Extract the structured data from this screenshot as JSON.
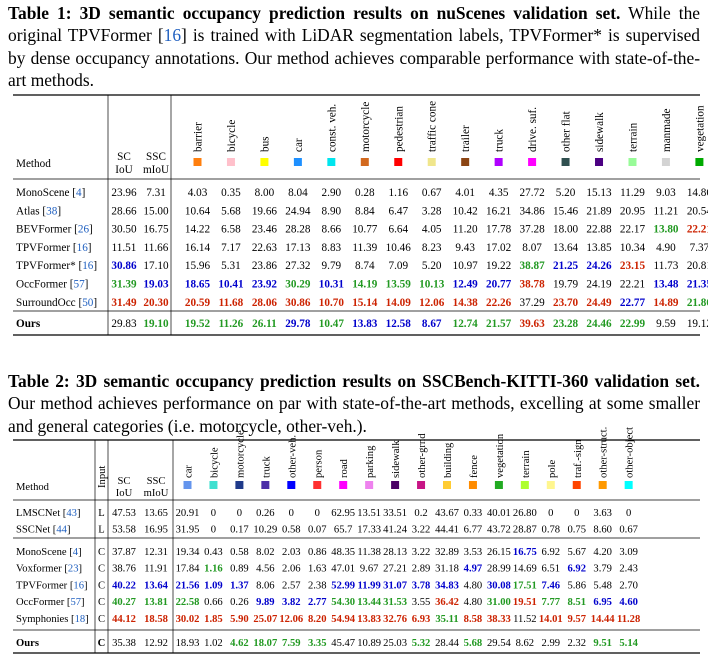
{
  "table1": {
    "label": "Table 1:",
    "title": "3D semantic occupancy prediction results on nuScenes validation set.",
    "text_pre": "While the original TPVFormer [",
    "ref": "16",
    "text_post": "] is trained with LiDAR segmentation labels, TPVFormer* is supervised by dense occupancy annotations. Our method achieves comparable performance with state-of-the-art methods.",
    "method_header": "Method",
    "metric_headers": [
      [
        "SC",
        "IoU"
      ],
      [
        "SSC",
        "mIoU"
      ]
    ],
    "classes": [
      {
        "name": "barrier",
        "color": "#ff7f0e"
      },
      {
        "name": "bicycle",
        "color": "#ffc0cb"
      },
      {
        "name": "bus",
        "color": "#ffff00"
      },
      {
        "name": "car",
        "color": "#1e90ff"
      },
      {
        "name": "const. veh.",
        "color": "#00e5ee"
      },
      {
        "name": "motorcycle",
        "color": "#d2691e"
      },
      {
        "name": "pedestrian",
        "color": "#ff0000"
      },
      {
        "name": "traffic cone",
        "color": "#f0e68c"
      },
      {
        "name": "trailer",
        "color": "#8b4513"
      },
      {
        "name": "truck",
        "color": "#b000ff"
      },
      {
        "name": "drive. suf.",
        "color": "#ff00ff"
      },
      {
        "name": "other flat",
        "color": "#2f4f4f"
      },
      {
        "name": "sidewalk",
        "color": "#4b0082"
      },
      {
        "name": "terrain",
        "color": "#98fb98"
      },
      {
        "name": "manmade",
        "color": "#d3d3d3"
      },
      {
        "name": "vegetation",
        "color": "#00aa00"
      }
    ],
    "rows": [
      {
        "method": "MonoScene",
        "ref": "4",
        "vals": [
          "23.96",
          "7.31",
          "4.03",
          "0.35",
          "8.00",
          "8.04",
          "2.90",
          "0.28",
          "1.16",
          "0.67",
          "4.01",
          "4.35",
          "27.72",
          "5.20",
          "15.13",
          "11.29",
          "9.03",
          "14.86"
        ],
        "styles": [
          0,
          0,
          0,
          0,
          0,
          0,
          0,
          0,
          0,
          0,
          0,
          0,
          0,
          0,
          0,
          0,
          0,
          0
        ]
      },
      {
        "method": "Atlas",
        "ref": "38",
        "vals": [
          "28.66",
          "15.00",
          "10.64",
          "5.68",
          "19.66",
          "24.94",
          "8.90",
          "8.84",
          "6.47",
          "3.28",
          "10.42",
          "16.21",
          "34.86",
          "15.46",
          "21.89",
          "20.95",
          "11.21",
          "20.54"
        ],
        "styles": [
          0,
          0,
          0,
          0,
          0,
          0,
          0,
          0,
          0,
          0,
          0,
          0,
          0,
          0,
          0,
          0,
          0,
          0
        ]
      },
      {
        "method": "BEVFormer",
        "ref": "26",
        "vals": [
          "30.50",
          "16.75",
          "14.22",
          "6.58",
          "23.46",
          "28.28",
          "8.66",
          "10.77",
          "6.64",
          "4.05",
          "11.20",
          "17.78",
          "37.28",
          "18.00",
          "22.88",
          "22.17",
          "13.80",
          "22.21"
        ],
        "styles": [
          0,
          0,
          0,
          0,
          0,
          0,
          0,
          0,
          0,
          0,
          0,
          0,
          0,
          0,
          0,
          0,
          2,
          3
        ]
      },
      {
        "method": "TPVFormer",
        "ref": "16",
        "vals": [
          "11.51",
          "11.66",
          "16.14",
          "7.17",
          "22.63",
          "17.13",
          "8.83",
          "11.39",
          "10.46",
          "8.23",
          "9.43",
          "17.02",
          "8.07",
          "13.64",
          "13.85",
          "10.34",
          "4.90",
          "7.37"
        ],
        "styles": [
          0,
          0,
          0,
          0,
          0,
          0,
          0,
          0,
          0,
          0,
          0,
          0,
          0,
          0,
          0,
          0,
          0,
          0
        ]
      },
      {
        "method": "TPVFormer*",
        "ref": "16",
        "vals": [
          "30.86",
          "17.10",
          "15.96",
          "5.31",
          "23.86",
          "27.32",
          "9.79",
          "8.74",
          "7.09",
          "5.20",
          "10.97",
          "19.22",
          "38.87",
          "21.25",
          "24.26",
          "23.15",
          "11.73",
          "20.81"
        ],
        "styles": [
          1,
          0,
          0,
          0,
          0,
          0,
          0,
          0,
          0,
          0,
          0,
          0,
          2,
          1,
          1,
          3,
          0,
          0
        ]
      },
      {
        "method": "OccFormer",
        "ref": "57",
        "vals": [
          "31.39",
          "19.03",
          "18.65",
          "10.41",
          "23.92",
          "30.29",
          "10.31",
          "14.19",
          "13.59",
          "10.13",
          "12.49",
          "20.77",
          "38.78",
          "19.79",
          "24.19",
          "22.21",
          "13.48",
          "21.35"
        ],
        "styles": [
          2,
          1,
          1,
          1,
          1,
          2,
          1,
          2,
          2,
          2,
          1,
          1,
          3,
          0,
          0,
          0,
          1,
          1
        ]
      },
      {
        "method": "SurroundOcc",
        "ref": "50",
        "vals": [
          "31.49",
          "20.30",
          "20.59",
          "11.68",
          "28.06",
          "30.86",
          "10.70",
          "15.14",
          "14.09",
          "12.06",
          "14.38",
          "22.26",
          "37.29",
          "23.70",
          "24.49",
          "22.77",
          "14.89",
          "21.86"
        ],
        "styles": [
          3,
          3,
          3,
          3,
          3,
          3,
          3,
          3,
          3,
          3,
          3,
          3,
          0,
          3,
          3,
          1,
          3,
          2
        ]
      }
    ],
    "ours": {
      "method": "Ours",
      "vals": [
        "29.83",
        "19.10",
        "19.52",
        "11.26",
        "26.11",
        "29.78",
        "10.47",
        "13.83",
        "12.58",
        "8.67",
        "12.74",
        "21.57",
        "39.63",
        "23.28",
        "24.46",
        "22.99",
        "9.59",
        "19.12"
      ],
      "styles": [
        0,
        2,
        2,
        2,
        2,
        1,
        2,
        1,
        1,
        1,
        2,
        2,
        3,
        2,
        2,
        2,
        0,
        0
      ]
    }
  },
  "table2": {
    "label": "Table 2:",
    "title": "3D semantic occupancy prediction results on SSCBench-KITTI-360 validation set.",
    "text": "Our method achieves performance on par with state-of-the-art methods, excelling at some smaller and general categories (i.e. motorcycle, other-veh.).",
    "method_header": "Method",
    "input_header": "Input",
    "metric_headers": [
      [
        "SC",
        "IoU"
      ],
      [
        "SSC",
        "mIoU"
      ]
    ],
    "classes": [
      {
        "name": "car",
        "color": "#6495ed"
      },
      {
        "name": "bicycle",
        "color": "#40e0d0"
      },
      {
        "name": "motorcycle",
        "color": "#1f3a8a"
      },
      {
        "name": "truck",
        "color": "#4b2ea8"
      },
      {
        "name": "other-veh.",
        "color": "#0000ff"
      },
      {
        "name": "person",
        "color": "#ff3030"
      },
      {
        "name": "road",
        "color": "#ff00ff"
      },
      {
        "name": "parking",
        "color": "#ee82ee"
      },
      {
        "name": "sidewalk",
        "color": "#4b0066"
      },
      {
        "name": "other-grnd",
        "color": "#c71585"
      },
      {
        "name": "building",
        "color": "#ffcc33"
      },
      {
        "name": "fence",
        "color": "#ff8c00"
      },
      {
        "name": "vegetation",
        "color": "#22aa22"
      },
      {
        "name": "terrain",
        "color": "#adff2f"
      },
      {
        "name": "pole",
        "color": "#fff68f"
      },
      {
        "name": "traf.-sign",
        "color": "#ff4500"
      },
      {
        "name": "other-struct.",
        "color": "#ff9900"
      },
      {
        "name": "other-object",
        "color": "#00ffff"
      }
    ],
    "group1": [
      {
        "method": "LMSCNet",
        "ref": "43",
        "input": "L",
        "vals": [
          "47.53",
          "13.65",
          "20.91",
          "0",
          "0",
          "0.26",
          "0",
          "0",
          "62.95",
          "13.51",
          "33.51",
          "0.2",
          "43.67",
          "0.33",
          "40.01",
          "26.80",
          "0",
          "0",
          "3.63",
          "0"
        ],
        "styles": [
          0,
          0,
          0,
          0,
          0,
          0,
          0,
          0,
          0,
          0,
          0,
          0,
          0,
          0,
          0,
          0,
          0,
          0,
          0,
          0
        ]
      },
      {
        "method": "SSCNet",
        "ref": "44",
        "input": "L",
        "vals": [
          "53.58",
          "16.95",
          "31.95",
          "0",
          "0.17",
          "10.29",
          "0.58",
          "0.07",
          "65.7",
          "17.33",
          "41.24",
          "3.22",
          "44.41",
          "6.77",
          "43.72",
          "28.87",
          "0.78",
          "0.75",
          "8.60",
          "0.67"
        ],
        "styles": [
          0,
          0,
          0,
          0,
          0,
          0,
          0,
          0,
          0,
          0,
          0,
          0,
          0,
          0,
          0,
          0,
          0,
          0,
          0,
          0
        ]
      }
    ],
    "group2": [
      {
        "method": "MonoScene",
        "ref": "4",
        "input": "C",
        "vals": [
          "37.87",
          "12.31",
          "19.34",
          "0.43",
          "0.58",
          "8.02",
          "2.03",
          "0.86",
          "48.35",
          "11.38",
          "28.13",
          "3.22",
          "32.89",
          "3.53",
          "26.15",
          "16.75",
          "6.92",
          "5.67",
          "4.20",
          "3.09"
        ],
        "styles": [
          0,
          0,
          0,
          0,
          0,
          0,
          0,
          0,
          0,
          0,
          0,
          0,
          0,
          0,
          0,
          1,
          0,
          0,
          0,
          0
        ]
      },
      {
        "method": "Voxformer",
        "ref": "23",
        "input": "C",
        "vals": [
          "38.76",
          "11.91",
          "17.84",
          "1.16",
          "0.89",
          "4.56",
          "2.06",
          "1.63",
          "47.01",
          "9.67",
          "27.21",
          "2.89",
          "31.18",
          "4.97",
          "28.99",
          "14.69",
          "6.51",
          "6.92",
          "3.79",
          "2.43"
        ],
        "styles": [
          0,
          0,
          0,
          2,
          0,
          0,
          0,
          0,
          0,
          0,
          0,
          0,
          0,
          1,
          0,
          0,
          0,
          1,
          0,
          0
        ]
      },
      {
        "method": "TPVFormer",
        "ref": "16",
        "input": "C",
        "vals": [
          "40.22",
          "13.64",
          "21.56",
          "1.09",
          "1.37",
          "8.06",
          "2.57",
          "2.38",
          "52.99",
          "11.99",
          "31.07",
          "3.78",
          "34.83",
          "4.80",
          "30.08",
          "17.51",
          "7.46",
          "5.86",
          "5.48",
          "2.70"
        ],
        "styles": [
          1,
          1,
          1,
          1,
          1,
          0,
          0,
          0,
          1,
          1,
          1,
          1,
          1,
          0,
          1,
          2,
          1,
          0,
          0,
          0
        ]
      },
      {
        "method": "OccFormer",
        "ref": "57",
        "input": "C",
        "vals": [
          "40.27",
          "13.81",
          "22.58",
          "0.66",
          "0.26",
          "9.89",
          "3.82",
          "2.77",
          "54.30",
          "13.44",
          "31.53",
          "3.55",
          "36.42",
          "4.80",
          "31.00",
          "19.51",
          "7.77",
          "8.51",
          "6.95",
          "4.60"
        ],
        "styles": [
          2,
          2,
          2,
          0,
          0,
          1,
          1,
          1,
          2,
          2,
          2,
          0,
          3,
          0,
          2,
          3,
          2,
          2,
          1,
          1
        ]
      },
      {
        "method": "Symphonies",
        "ref": "18",
        "input": "C",
        "vals": [
          "44.12",
          "18.58",
          "30.02",
          "1.85",
          "5.90",
          "25.07",
          "12.06",
          "8.20",
          "54.94",
          "13.83",
          "32.76",
          "6.93",
          "35.11",
          "8.58",
          "38.33",
          "11.52",
          "14.01",
          "9.57",
          "14.44",
          "11.28"
        ],
        "styles": [
          3,
          3,
          3,
          3,
          3,
          3,
          3,
          3,
          3,
          3,
          3,
          3,
          2,
          3,
          3,
          0,
          3,
          3,
          3,
          3
        ]
      }
    ],
    "ours": {
      "method": "Ours",
      "input": "C",
      "vals": [
        "35.38",
        "12.92",
        "18.93",
        "1.02",
        "4.62",
        "18.07",
        "7.59",
        "3.35",
        "45.47",
        "10.89",
        "25.03",
        "5.32",
        "28.44",
        "5.68",
        "29.54",
        "8.62",
        "2.99",
        "2.32",
        "9.51",
        "5.14"
      ],
      "styles": [
        0,
        0,
        0,
        0,
        2,
        2,
        2,
        2,
        0,
        0,
        0,
        2,
        0,
        2,
        0,
        0,
        0,
        0,
        2,
        2
      ]
    }
  }
}
